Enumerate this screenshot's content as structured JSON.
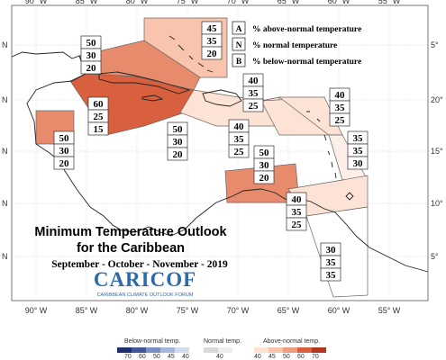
{
  "map": {
    "title_line1": "Minimum Temperature Outlook",
    "title_line2": "for the Caribbean",
    "subtitle": "September - October - November - 2019",
    "logo_text": "CARICOF",
    "logo_subtext": "CARIBBEAN CLIMATE OUTLOOK FORUM",
    "lon_labels": [
      "90° W",
      "85° W",
      "80° W",
      "75° W",
      "70° W",
      "65° W",
      "60° W",
      "55° W"
    ],
    "lat_labels_left": [
      "N",
      "N",
      "N",
      "N",
      "N",
      "N"
    ],
    "lat_labels_right": [
      "5°",
      "20°",
      "15°",
      "10°",
      "5°"
    ]
  },
  "legend": {
    "a_key": "A",
    "a_text": "% above-normal temperature",
    "n_key": "N",
    "n_text": "% normal temperature",
    "b_key": "B",
    "b_text": "% below-normal temperature"
  },
  "regions": [
    {
      "name": "bahamas",
      "values": [
        "45",
        "35",
        "20"
      ],
      "color": "#f8c4ad"
    },
    {
      "name": "gulf-yucatan",
      "values": [
        "50",
        "30",
        "20"
      ],
      "color": "#e88b6c"
    },
    {
      "name": "cuba-jamaica",
      "values": [
        "60",
        "25",
        "15"
      ],
      "color": "#d9603e"
    },
    {
      "name": "belize",
      "values": [
        "50",
        "30",
        "20"
      ],
      "color": "#e88b6c"
    },
    {
      "name": "cayman-jamaica-south",
      "values": [
        "50",
        "30",
        "20"
      ],
      "color": "#e88b6c"
    },
    {
      "name": "hispaniola",
      "values": [
        "40",
        "35",
        "25"
      ],
      "color": "#fde3d6"
    },
    {
      "name": "puerto-rico",
      "values": [
        "40",
        "35",
        "25"
      ],
      "color": "#fde3d6"
    },
    {
      "name": "northern-leewards",
      "values": [
        "40",
        "35",
        "25"
      ],
      "color": "#fde3d6"
    },
    {
      "name": "windwards",
      "values": [
        "35",
        "35",
        "30"
      ],
      "color": "#fdeee7"
    },
    {
      "name": "abc-islands",
      "values": [
        "50",
        "30",
        "20"
      ],
      "color": "#e88b6c"
    },
    {
      "name": "trinidad",
      "values": [
        "40",
        "35",
        "25"
      ],
      "color": "#fde3d6"
    },
    {
      "name": "guianas",
      "values": [
        "30",
        "35",
        "35"
      ],
      "color": "#ffffff"
    }
  ],
  "colorbar": {
    "below_label": "Below-normal temp.",
    "normal_label": "Normal temp.",
    "above_label": "Above-normal temp.",
    "below_ticks": [
      "70",
      "60",
      "50",
      "45",
      "40"
    ],
    "normal_tick": "40",
    "above_ticks": [
      "40",
      "45",
      "50",
      "60",
      "70"
    ],
    "below_colors": [
      "#1f2f6b",
      "#3f5699",
      "#7b8fc4",
      "#a9b6db",
      "#d4daee"
    ],
    "normal_colors": [
      "#d9d9d9",
      "#eeeeee"
    ],
    "above_colors": [
      "#fde3d6",
      "#f8c4ad",
      "#ee9d7f",
      "#d9603e",
      "#b23620"
    ]
  }
}
